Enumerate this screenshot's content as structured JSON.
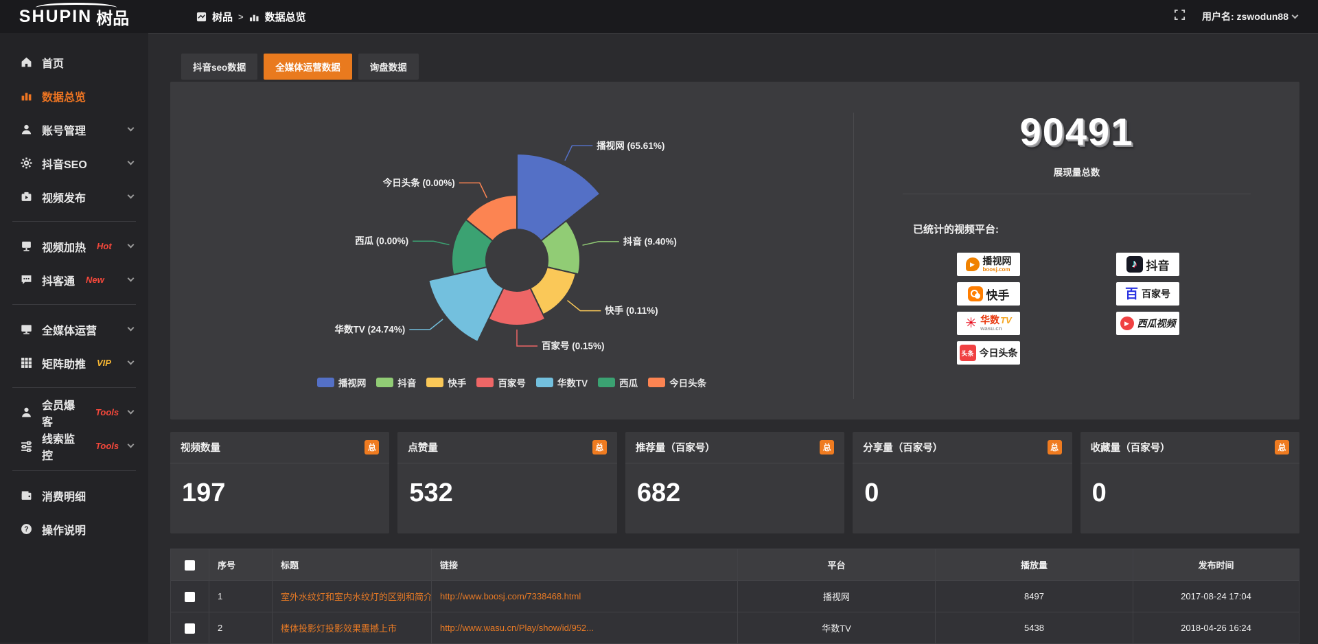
{
  "brand": {
    "name": "SHUPIN",
    "suffix": "树品"
  },
  "topbar": {
    "breadcrumb_root": "树品",
    "breadcrumb_sep": ">",
    "breadcrumb_current": "数据总览",
    "username": "用户名: zswodun88"
  },
  "sidebar": {
    "items": [
      {
        "label": "首页",
        "icon": "home"
      },
      {
        "label": "数据总览",
        "icon": "bar-chart",
        "active": true
      },
      {
        "label": "账号管理",
        "icon": "user",
        "expandable": true
      },
      {
        "label": "抖音SEO",
        "icon": "gear",
        "expandable": true
      },
      {
        "label": "视频发布",
        "icon": "video-publish",
        "expandable": true
      },
      {
        "label": "视频加热",
        "icon": "screen",
        "badge": "Hot",
        "expandable": true
      },
      {
        "label": "抖客通",
        "icon": "chat",
        "badge": "New",
        "expandable": true
      },
      {
        "label": "全媒体运营",
        "icon": "monitor",
        "expandable": true
      },
      {
        "label": "矩阵助推",
        "icon": "grid",
        "badge": "VIP",
        "expandable": true
      },
      {
        "label": "会员爆客",
        "icon": "member",
        "badge": "Tools",
        "expandable": true
      },
      {
        "label": "线索监控",
        "icon": "sliders",
        "badge": "Tools",
        "expandable": true
      },
      {
        "label": "消费明细",
        "icon": "wallet"
      },
      {
        "label": "操作说明",
        "icon": "help"
      }
    ]
  },
  "tabs": [
    {
      "label": "抖音seo数据"
    },
    {
      "label": "全媒体运营数据",
      "active": true
    },
    {
      "label": "询盘数据"
    }
  ],
  "chart_data": {
    "type": "pie",
    "rose": true,
    "inner_radius": 45,
    "label_format": "{name} ({pct}%)",
    "legend_position": "bottom",
    "slices": [
      {
        "name": "播视网",
        "pct": 65.61,
        "pct_label": "65.61",
        "color": "#5470c6",
        "radius": 155
      },
      {
        "name": "抖音",
        "pct": 9.4,
        "pct_label": "9.40",
        "color": "#91cc75",
        "radius": 92
      },
      {
        "name": "快手",
        "pct": 0.11,
        "pct_label": "0.11",
        "color": "#fac858",
        "radius": 88
      },
      {
        "name": "百家号",
        "pct": 0.15,
        "pct_label": "0.15",
        "color": "#ee6666",
        "radius": 95
      },
      {
        "name": "华数TV",
        "pct": 24.74,
        "pct_label": "24.74",
        "color": "#73c0de",
        "radius": 132
      },
      {
        "name": "西瓜",
        "pct": 0.0,
        "pct_label": "0.00",
        "color": "#3ba272",
        "radius": 95
      },
      {
        "name": "今日头条",
        "pct": 0.0,
        "pct_label": "0.00",
        "color": "#fc8452",
        "radius": 95
      }
    ]
  },
  "summary": {
    "total": "90491",
    "total_label": "展现量总数",
    "platforms_label": "已统计的视频平台:",
    "platforms": [
      {
        "name": "播视网",
        "sub": "boosj.com"
      },
      {
        "name": "抖音"
      },
      {
        "name": "快手"
      },
      {
        "name": "百家号"
      },
      {
        "name": "华数",
        "name2": "TV",
        "sub": "wasu.cn"
      },
      {
        "name": "西瓜视频"
      },
      {
        "name": "今日头条"
      }
    ]
  },
  "stats": [
    {
      "title": "视频数量",
      "badge": "总",
      "value": "197"
    },
    {
      "title": "点赞量",
      "badge": "总",
      "value": "532"
    },
    {
      "title": "推荐量（百家号）",
      "badge": "总",
      "value": "682"
    },
    {
      "title": "分享量（百家号）",
      "badge": "总",
      "value": "0"
    },
    {
      "title": "收藏量（百家号）",
      "badge": "总",
      "value": "0"
    }
  ],
  "table": {
    "columns": [
      "序号",
      "标题",
      "链接",
      "平台",
      "播放量",
      "发布时间"
    ],
    "rows": [
      {
        "index": "1",
        "title": "室外水纹灯和室内水纹灯的区别和简介",
        "link": "http://www.boosj.com/7338468.html",
        "platform": "播视网",
        "plays": "8497",
        "time": "2017-08-24 17:04"
      },
      {
        "index": "2",
        "title": "楼体投影灯投影效果震撼上市",
        "link": "http://www.wasu.cn/Play/show/id/952...",
        "platform": "华数TV",
        "plays": "5438",
        "time": "2018-04-26 16:24"
      }
    ]
  }
}
